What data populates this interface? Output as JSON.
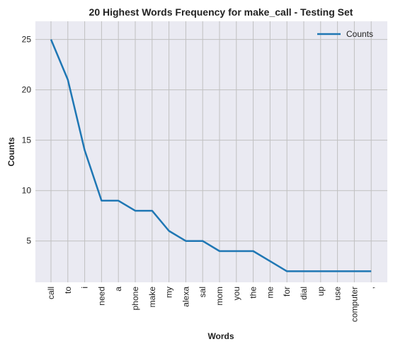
{
  "chart_data": {
    "type": "line",
    "title": "20 Highest Words Frequency for make_call - Testing Set",
    "xlabel": "Words",
    "ylabel": "Counts",
    "categories": [
      "call",
      "to",
      "i",
      "need",
      "a",
      "phone",
      "make",
      "my",
      "alexa",
      "sal",
      "mom",
      "you",
      "the",
      "me",
      "for",
      "dial",
      "up",
      "use",
      "computer",
      ","
    ],
    "series": [
      {
        "name": "Counts",
        "values": [
          25,
          21,
          14,
          9,
          9,
          8,
          8,
          6,
          5,
          5,
          4,
          4,
          4,
          3,
          2,
          2,
          2,
          2,
          2,
          2
        ]
      }
    ],
    "ylim": [
      0.9,
      26.8
    ],
    "yticks": [
      5,
      10,
      15,
      20,
      25
    ],
    "grid": true,
    "legend": "top-right",
    "colors": {
      "line": "#1f77b4",
      "plot_bg": "#eaeaf2",
      "grid": "#c0c0c0"
    }
  }
}
